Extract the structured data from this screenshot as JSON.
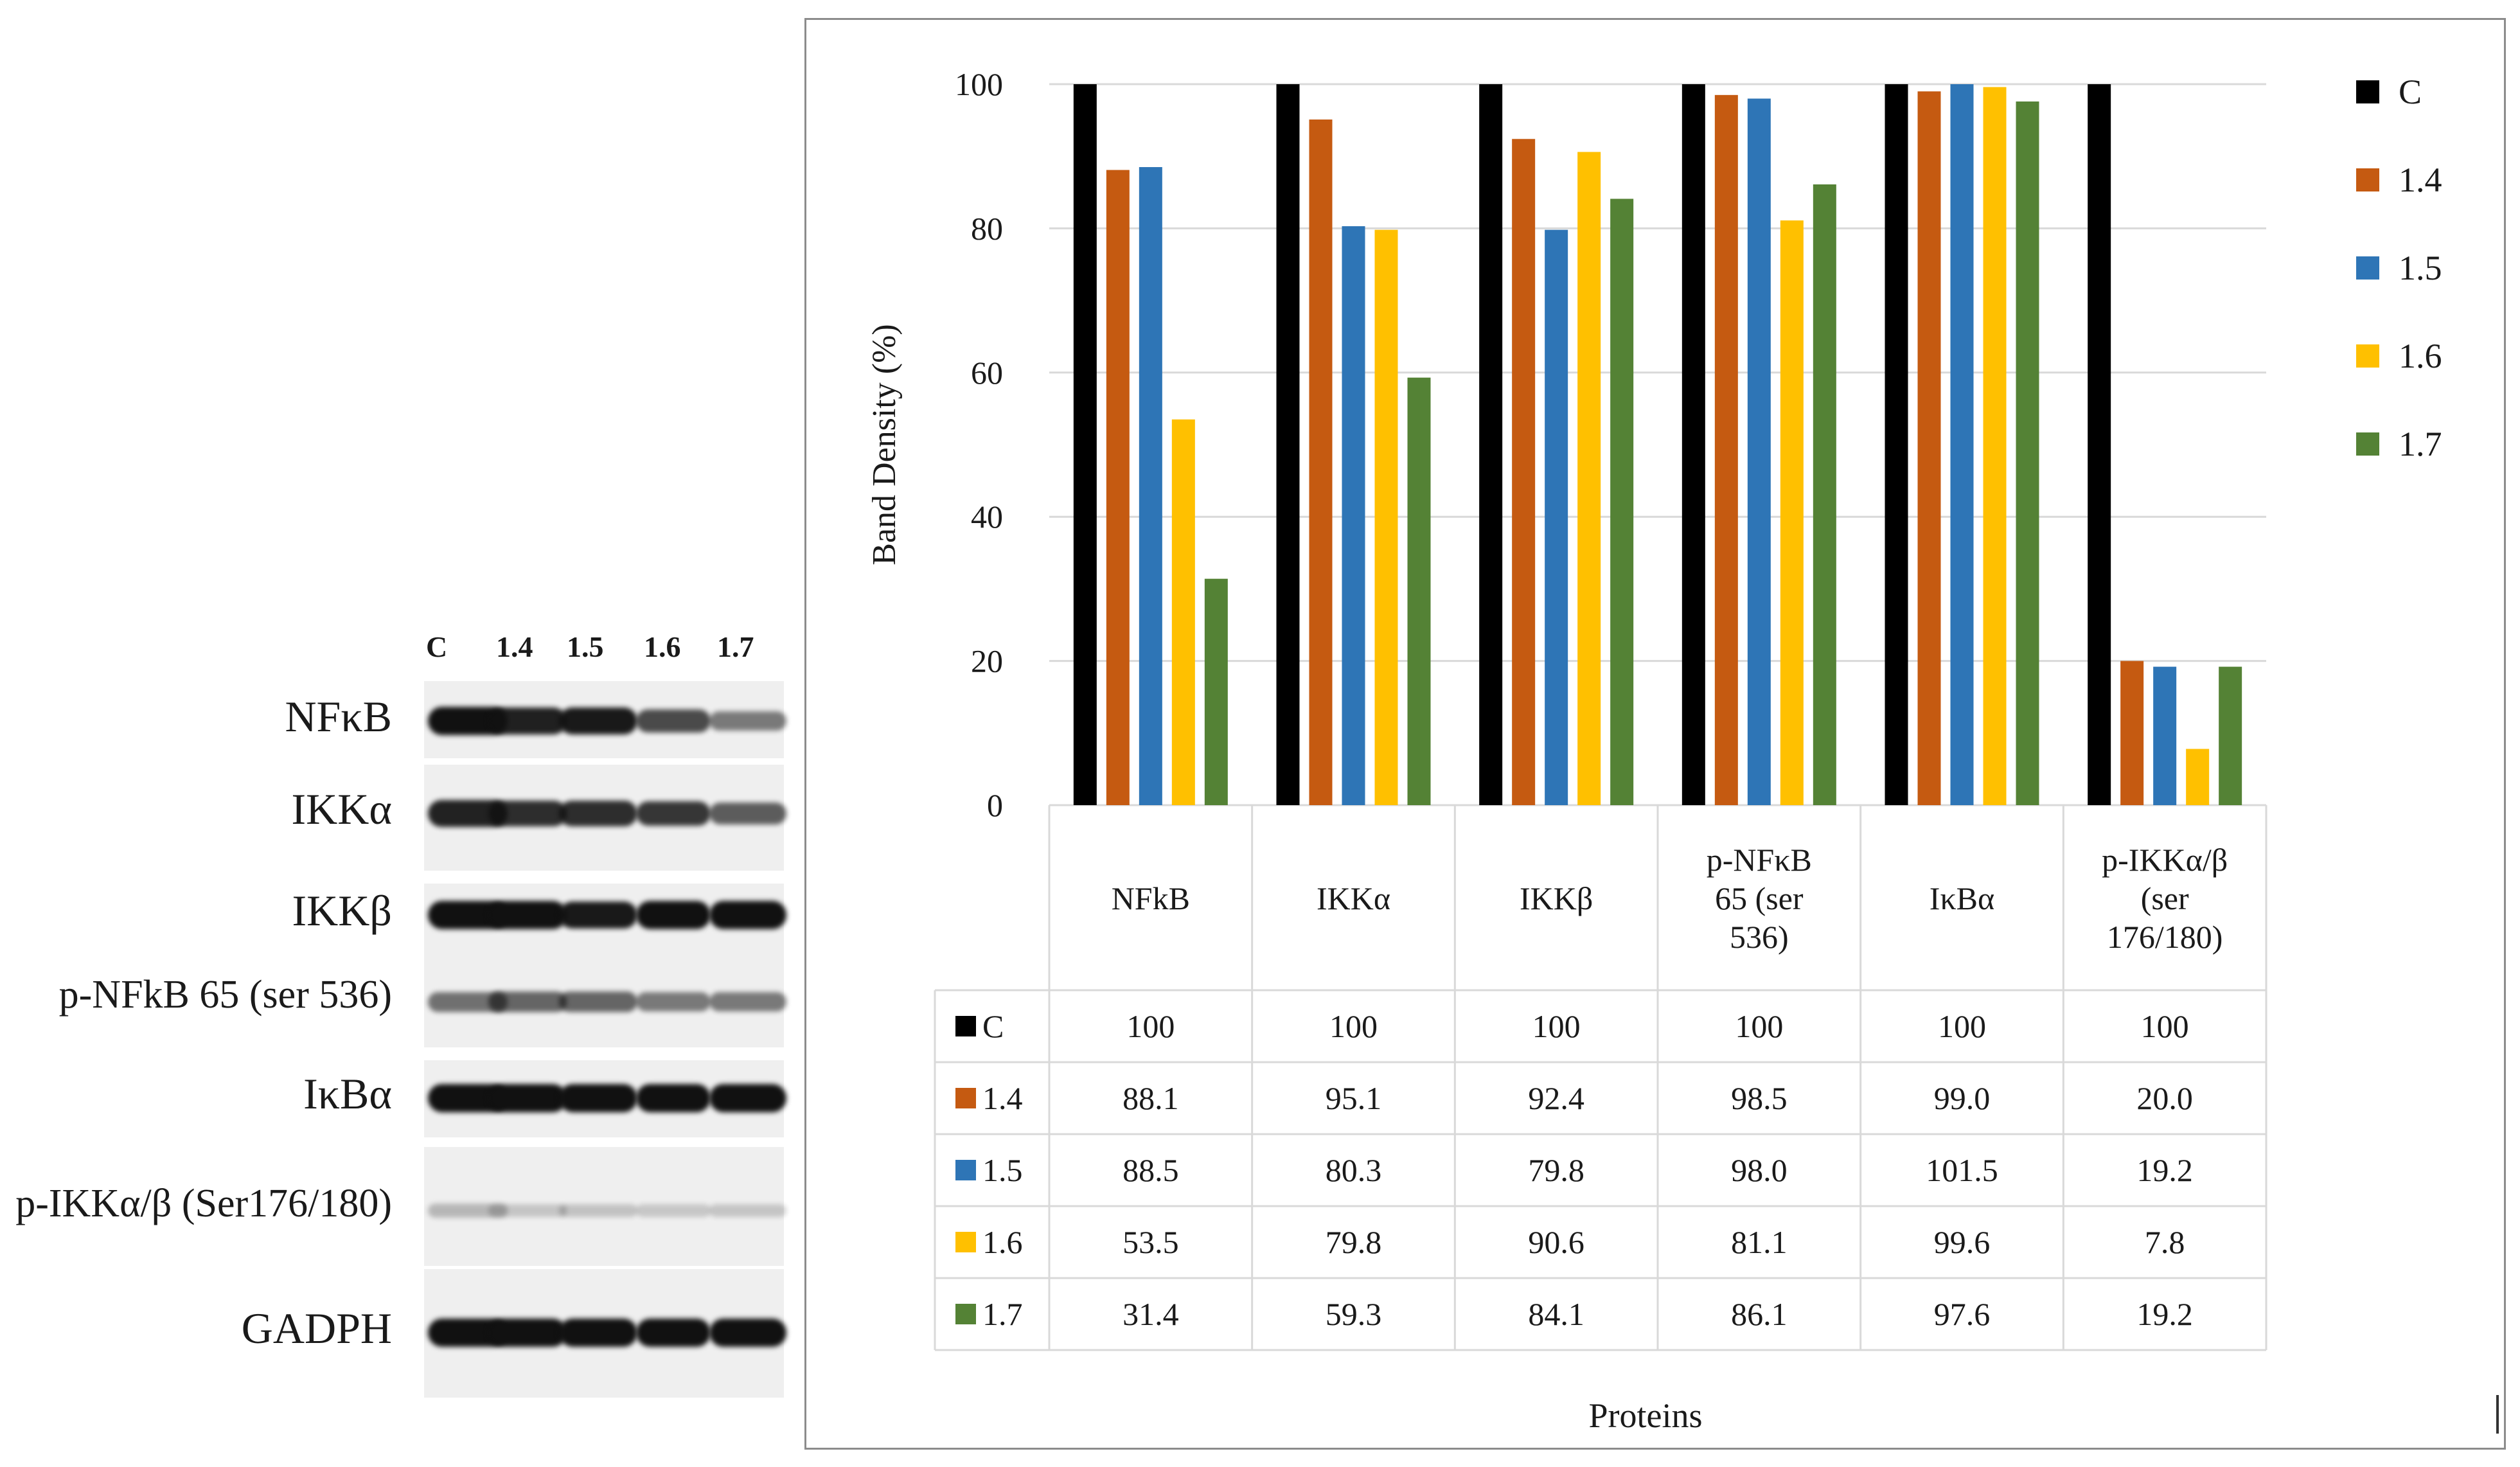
{
  "blot": {
    "lanes": [
      "C",
      "1.4",
      "1.5",
      "1.6",
      "1.7"
    ],
    "rows": [
      {
        "label": "NFκB",
        "intensity": [
          1.0,
          0.92,
          0.95,
          0.7,
          0.45
        ]
      },
      {
        "label": "IKKα",
        "intensity": [
          0.9,
          0.85,
          0.85,
          0.8,
          0.6
        ]
      },
      {
        "label": "IKKβ",
        "intensity": [
          1.0,
          1.0,
          0.95,
          1.0,
          1.0
        ]
      },
      {
        "label": "p-NFkB 65 (ser 536)",
        "intensity": [
          0.5,
          0.55,
          0.55,
          0.45,
          0.45
        ]
      },
      {
        "label": "IκBα",
        "intensity": [
          1.0,
          1.0,
          1.0,
          1.0,
          1.0
        ]
      },
      {
        "label": "p-IKKα/β (Ser176/180)",
        "intensity": [
          0.12,
          0.05,
          0.06,
          0.04,
          0.05
        ]
      },
      {
        "label": "GADPH",
        "intensity": [
          1.0,
          1.0,
          1.0,
          1.0,
          1.0
        ]
      }
    ]
  },
  "chart_data": {
    "type": "bar",
    "ylabel": "Band Density (%)",
    "xlabel": "Proteins",
    "ylim": [
      0,
      100
    ],
    "yticks": [
      0,
      20,
      40,
      60,
      80,
      100
    ],
    "grid": true,
    "legend_position": "right",
    "categories": [
      "NFkB",
      "IKKα",
      "IKKβ",
      "p-NFκB 65 (ser 536)",
      "IκBα",
      "p-IKKα/β (ser 176/180)"
    ],
    "category_lines": [
      [
        "NFkB"
      ],
      [
        "IKKα"
      ],
      [
        "IKKβ"
      ],
      [
        "p-NFκB",
        "65 (ser",
        "536)"
      ],
      [
        "IκBα"
      ],
      [
        "p-IKKα/β",
        "(ser",
        "176/180)"
      ]
    ],
    "series": [
      {
        "name": "C",
        "color": "#000000",
        "values": [
          100,
          100,
          100,
          100,
          100,
          100
        ],
        "labels": [
          "100",
          "100",
          "100",
          "100",
          "100",
          "100"
        ]
      },
      {
        "name": "1.4",
        "color": "#c55a11",
        "values": [
          88.1,
          95.1,
          92.4,
          98.5,
          99.0,
          20.0
        ],
        "labels": [
          "88.1",
          "95.1",
          "92.4",
          "98.5",
          "99.0",
          "20.0"
        ]
      },
      {
        "name": "1.5",
        "color": "#2e75b6",
        "values": [
          88.5,
          80.3,
          79.8,
          98.0,
          101.5,
          19.2
        ],
        "labels": [
          "88.5",
          "80.3",
          "79.8",
          "98.0",
          "101.5",
          "19.2"
        ]
      },
      {
        "name": "1.6",
        "color": "#ffc000",
        "values": [
          53.5,
          79.8,
          90.6,
          81.1,
          99.6,
          7.8
        ],
        "labels": [
          "53.5",
          "79.8",
          "90.6",
          "81.1",
          "99.6",
          "7.8"
        ]
      },
      {
        "name": "1.7",
        "color": "#548235",
        "values": [
          31.4,
          59.3,
          84.1,
          86.1,
          97.6,
          19.2
        ],
        "labels": [
          "31.4",
          "59.3",
          "84.1",
          "86.1",
          "97.6",
          "19.2"
        ]
      }
    ]
  }
}
